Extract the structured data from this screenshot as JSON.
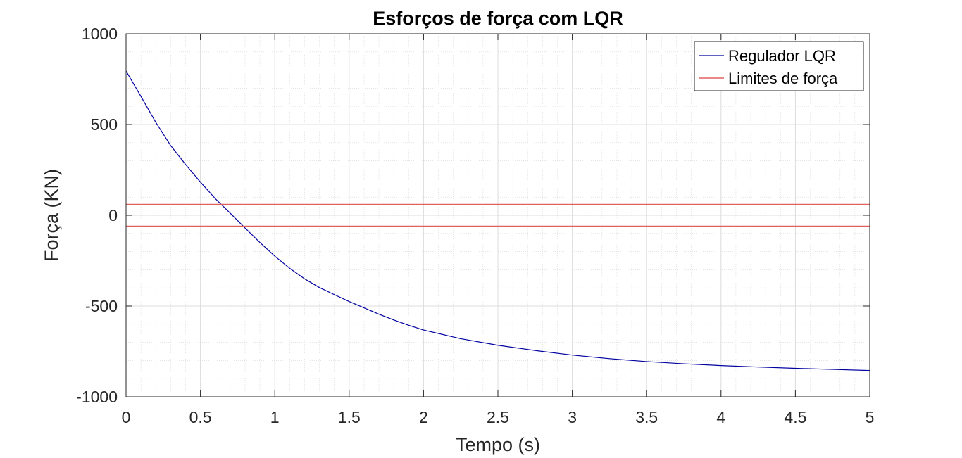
{
  "chart_data": {
    "type": "line",
    "title": "Esforços de força com LQR",
    "xlabel": "Tempo (s)",
    "ylabel": "Força (KN)",
    "xlim": [
      0,
      5
    ],
    "ylim": [
      -1000,
      1000
    ],
    "xticks": [
      0,
      0.5,
      1,
      1.5,
      2,
      2.5,
      3,
      3.5,
      4,
      4.5,
      5
    ],
    "xtick_labels": [
      "0",
      "0.5",
      "1",
      "1.5",
      "2",
      "2.5",
      "3",
      "3.5",
      "4",
      "4.5",
      "5"
    ],
    "yticks": [
      1000,
      500,
      0,
      -500,
      -1000
    ],
    "ytick_labels": [
      "1000",
      "500",
      "0",
      "-500",
      "-1000"
    ],
    "grid": true,
    "minor_grid": true,
    "legend_position": "top-right",
    "series": [
      {
        "name": "Regulador LQR",
        "color": "#0000a0",
        "x": [
          0,
          0.1,
          0.2,
          0.3,
          0.4,
          0.5,
          0.6,
          0.7,
          0.8,
          0.9,
          1.0,
          1.1,
          1.2,
          1.3,
          1.4,
          1.5,
          1.6,
          1.7,
          1.8,
          1.9,
          2.0,
          2.25,
          2.5,
          2.75,
          3.0,
          3.25,
          3.5,
          3.75,
          4.0,
          4.25,
          4.5,
          4.75,
          5.0
        ],
        "y": [
          795,
          655,
          512,
          384,
          280,
          183,
          92,
          12,
          -70,
          -150,
          -225,
          -292,
          -350,
          -398,
          -437,
          -475,
          -510,
          -545,
          -577,
          -606,
          -632,
          -680,
          -716,
          -745,
          -770,
          -790,
          -806,
          -818,
          -828,
          -836,
          -843,
          -849,
          -855
        ]
      },
      {
        "name": "Limites de força",
        "color": "#e06060",
        "lines": [
          {
            "x": [
              0,
              5
            ],
            "y": [
              60,
              60
            ]
          },
          {
            "x": [
              0,
              5
            ],
            "y": [
              -60,
              -60
            ]
          }
        ]
      }
    ]
  }
}
